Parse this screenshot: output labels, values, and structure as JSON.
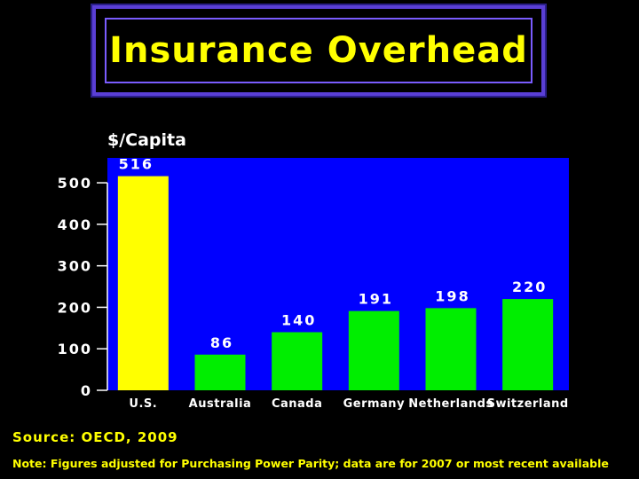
{
  "title": "Insurance Overhead",
  "source": "Source: OECD, 2009",
  "note": "Note: Figures adjusted for Purchasing Power Parity; data are for 2007 or most recent available",
  "colors": {
    "plot_bg": "#0000ff",
    "highlight_bar": "#ffff00",
    "bar": "#00ee00",
    "text": "#ffffff",
    "accent_text": "#ffff00"
  },
  "chart_data": {
    "type": "bar",
    "title": "Insurance Overhead",
    "ylabel": "$/Capita",
    "xlabel": "",
    "categories": [
      "U.S.",
      "Australia",
      "Canada",
      "Germany",
      "Netherlands",
      "Switzerland"
    ],
    "values": [
      516,
      86,
      140,
      191,
      198,
      220
    ],
    "data_labels": [
      "516",
      "86",
      "140",
      "191",
      "198",
      "220"
    ],
    "ylim": [
      0,
      560
    ],
    "yticks": [
      0,
      100,
      200,
      300,
      400,
      500
    ],
    "ytick_labels": [
      "0",
      "100",
      "200",
      "300",
      "400",
      "500"
    ],
    "grid": false,
    "legend": "none"
  }
}
